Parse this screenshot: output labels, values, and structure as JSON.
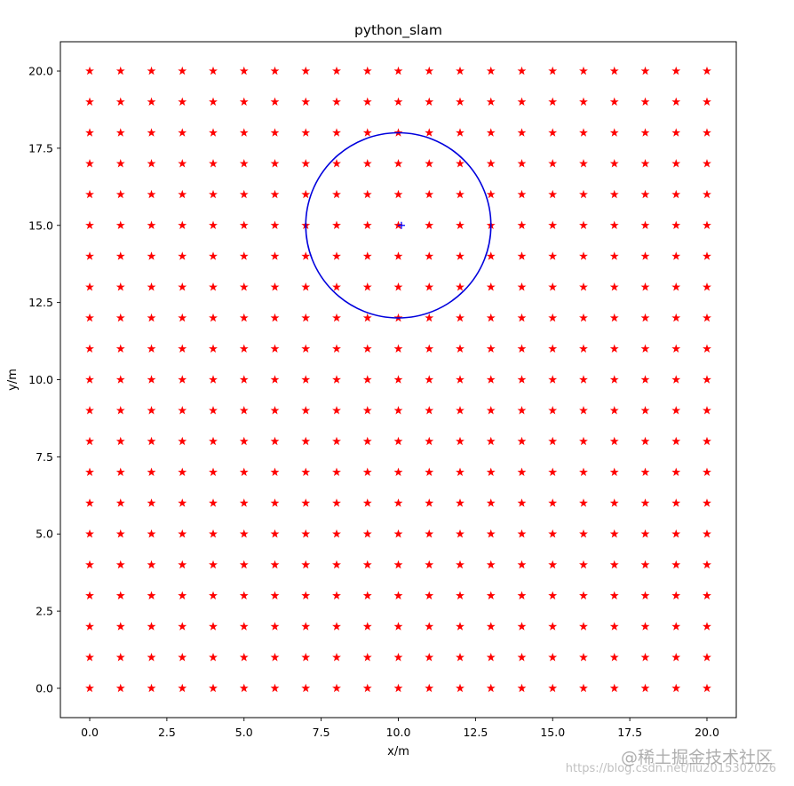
{
  "chart_data": {
    "type": "scatter",
    "title": "python_slam",
    "xlabel": "x/m",
    "ylabel": "y/m",
    "xlim": [
      -0.95,
      20.95
    ],
    "ylim": [
      -0.95,
      20.95
    ],
    "xticks": [
      0.0,
      2.5,
      5.0,
      7.5,
      10.0,
      12.5,
      15.0,
      17.5,
      20.0
    ],
    "yticks": [
      0.0,
      2.5,
      5.0,
      7.5,
      10.0,
      12.5,
      15.0,
      17.5,
      20.0
    ],
    "xtick_labels": [
      "0.0",
      "2.5",
      "5.0",
      "7.5",
      "10.0",
      "12.5",
      "15.0",
      "17.5",
      "20.0"
    ],
    "ytick_labels": [
      "0.0",
      "2.5",
      "5.0",
      "7.5",
      "10.0",
      "12.5",
      "15.0",
      "17.5",
      "20.0"
    ],
    "grid": false,
    "series": [
      {
        "kind": "landmarks",
        "marker": "star",
        "color": "#ff0000",
        "grid_x": {
          "start": 0,
          "stop": 20,
          "step": 1
        },
        "grid_y": {
          "start": 0,
          "stop": 20,
          "step": 1
        }
      },
      {
        "kind": "robot-pose",
        "marker": "plus",
        "color": "#0000ff",
        "x": 10.1,
        "y": 15.0
      },
      {
        "kind": "sensor-range-circle",
        "color": "#0000dd",
        "center": [
          10.0,
          15.0
        ],
        "radius": 3.0
      }
    ]
  },
  "watermark": {
    "main": "@稀土掘金技术社区",
    "url": "https://blog.csdn.net/liu2015302026"
  }
}
